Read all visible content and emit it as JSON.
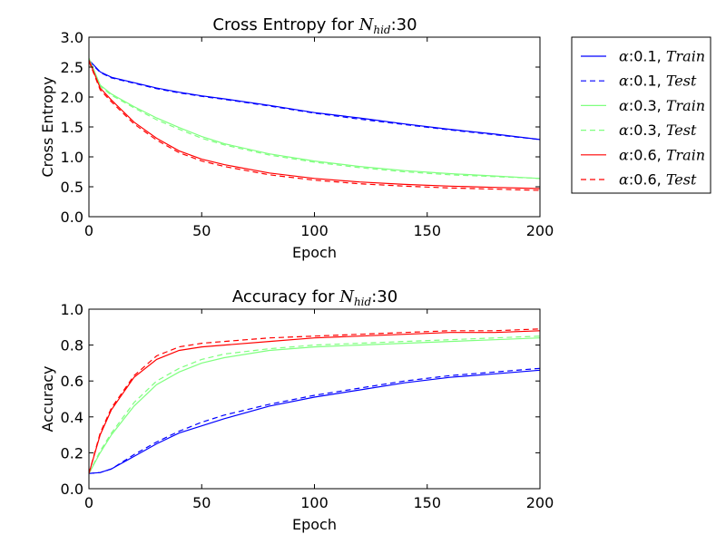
{
  "chart_data": [
    {
      "type": "line",
      "title_prefix": "Cross Entropy for ",
      "title_sym_main": "N",
      "title_sym_sub": "hid",
      "title_suffix": ":30",
      "xlabel": "Epoch",
      "ylabel": "Cross Entropy",
      "xlim": [
        0,
        200
      ],
      "ylim": [
        0,
        3.0
      ],
      "xticks": [
        "0",
        "50",
        "100",
        "150",
        "200"
      ],
      "yticks": [
        "0.0",
        "0.5",
        "1.0",
        "1.5",
        "2.0",
        "2.5",
        "3.0"
      ],
      "x": [
        0,
        5,
        10,
        20,
        30,
        40,
        50,
        60,
        80,
        100,
        120,
        140,
        160,
        180,
        200
      ],
      "series": [
        {
          "color": "#0000ff",
          "dash": false,
          "values": [
            2.62,
            2.42,
            2.33,
            2.24,
            2.15,
            2.08,
            2.02,
            1.97,
            1.86,
            1.74,
            1.65,
            1.55,
            1.46,
            1.38,
            1.29
          ]
        },
        {
          "color": "#0000ff",
          "dash": true,
          "values": [
            2.6,
            2.41,
            2.32,
            2.23,
            2.14,
            2.07,
            2.01,
            1.96,
            1.85,
            1.73,
            1.63,
            1.54,
            1.45,
            1.37,
            1.29
          ]
        },
        {
          "color": "#7fff7f",
          "dash": false,
          "values": [
            2.65,
            2.2,
            2.05,
            1.84,
            1.65,
            1.49,
            1.34,
            1.22,
            1.05,
            0.93,
            0.84,
            0.77,
            0.72,
            0.68,
            0.64
          ]
        },
        {
          "color": "#7fff7f",
          "dash": true,
          "values": [
            2.63,
            2.18,
            2.03,
            1.82,
            1.62,
            1.46,
            1.31,
            1.2,
            1.03,
            0.91,
            0.82,
            0.75,
            0.7,
            0.67,
            0.64
          ]
        },
        {
          "color": "#ff0000",
          "dash": false,
          "values": [
            2.62,
            2.15,
            1.95,
            1.58,
            1.31,
            1.1,
            0.96,
            0.87,
            0.73,
            0.64,
            0.58,
            0.54,
            0.51,
            0.49,
            0.47
          ]
        },
        {
          "color": "#ff0000",
          "dash": true,
          "values": [
            2.6,
            2.12,
            1.92,
            1.55,
            1.28,
            1.07,
            0.93,
            0.84,
            0.7,
            0.61,
            0.55,
            0.51,
            0.48,
            0.46,
            0.44
          ]
        }
      ]
    },
    {
      "type": "line",
      "title_prefix": "Accuracy for ",
      "title_sym_main": "N",
      "title_sym_sub": "hid",
      "title_suffix": ":30",
      "xlabel": "Epoch",
      "ylabel": "Accuracy",
      "xlim": [
        0,
        200
      ],
      "ylim": [
        0,
        1.0
      ],
      "xticks": [
        "0",
        "50",
        "100",
        "150",
        "200"
      ],
      "yticks": [
        "0.0",
        "0.2",
        "0.4",
        "0.6",
        "0.8",
        "1.0"
      ],
      "x": [
        0,
        5,
        10,
        20,
        30,
        40,
        50,
        60,
        80,
        100,
        120,
        140,
        160,
        180,
        200
      ],
      "series": [
        {
          "color": "#0000ff",
          "dash": false,
          "values": [
            0.085,
            0.09,
            0.11,
            0.18,
            0.25,
            0.31,
            0.35,
            0.39,
            0.46,
            0.51,
            0.55,
            0.59,
            0.62,
            0.64,
            0.66
          ]
        },
        {
          "color": "#0000ff",
          "dash": true,
          "values": [
            0.085,
            0.09,
            0.11,
            0.19,
            0.26,
            0.32,
            0.37,
            0.41,
            0.47,
            0.52,
            0.56,
            0.6,
            0.63,
            0.65,
            0.67
          ]
        },
        {
          "color": "#7fff7f",
          "dash": false,
          "values": [
            0.085,
            0.2,
            0.3,
            0.46,
            0.58,
            0.65,
            0.7,
            0.73,
            0.77,
            0.79,
            0.8,
            0.81,
            0.82,
            0.83,
            0.84
          ]
        },
        {
          "color": "#7fff7f",
          "dash": true,
          "values": [
            0.085,
            0.21,
            0.31,
            0.48,
            0.6,
            0.67,
            0.72,
            0.75,
            0.78,
            0.8,
            0.81,
            0.82,
            0.83,
            0.84,
            0.85
          ]
        },
        {
          "color": "#ff0000",
          "dash": false,
          "values": [
            0.085,
            0.3,
            0.44,
            0.62,
            0.72,
            0.77,
            0.79,
            0.8,
            0.82,
            0.84,
            0.85,
            0.86,
            0.87,
            0.87,
            0.88
          ]
        },
        {
          "color": "#ff0000",
          "dash": true,
          "values": [
            0.085,
            0.31,
            0.45,
            0.63,
            0.74,
            0.79,
            0.81,
            0.82,
            0.84,
            0.85,
            0.86,
            0.87,
            0.88,
            0.88,
            0.89
          ]
        }
      ]
    }
  ],
  "legend": {
    "placement": "right of top chart",
    "items": [
      {
        "alpha": "α",
        "value": ":0.1, ",
        "split": "Train",
        "color": "#0000ff",
        "dash": false
      },
      {
        "alpha": "α",
        "value": ":0.1, ",
        "split": "Test",
        "color": "#0000ff",
        "dash": true
      },
      {
        "alpha": "α",
        "value": ":0.3, ",
        "split": "Train",
        "color": "#7fff7f",
        "dash": false
      },
      {
        "alpha": "α",
        "value": ":0.3, ",
        "split": "Test",
        "color": "#7fff7f",
        "dash": true
      },
      {
        "alpha": "α",
        "value": ":0.6, ",
        "split": "Train",
        "color": "#ff0000",
        "dash": false
      },
      {
        "alpha": "α",
        "value": ":0.6, ",
        "split": "Test",
        "color": "#ff0000",
        "dash": true
      }
    ]
  }
}
